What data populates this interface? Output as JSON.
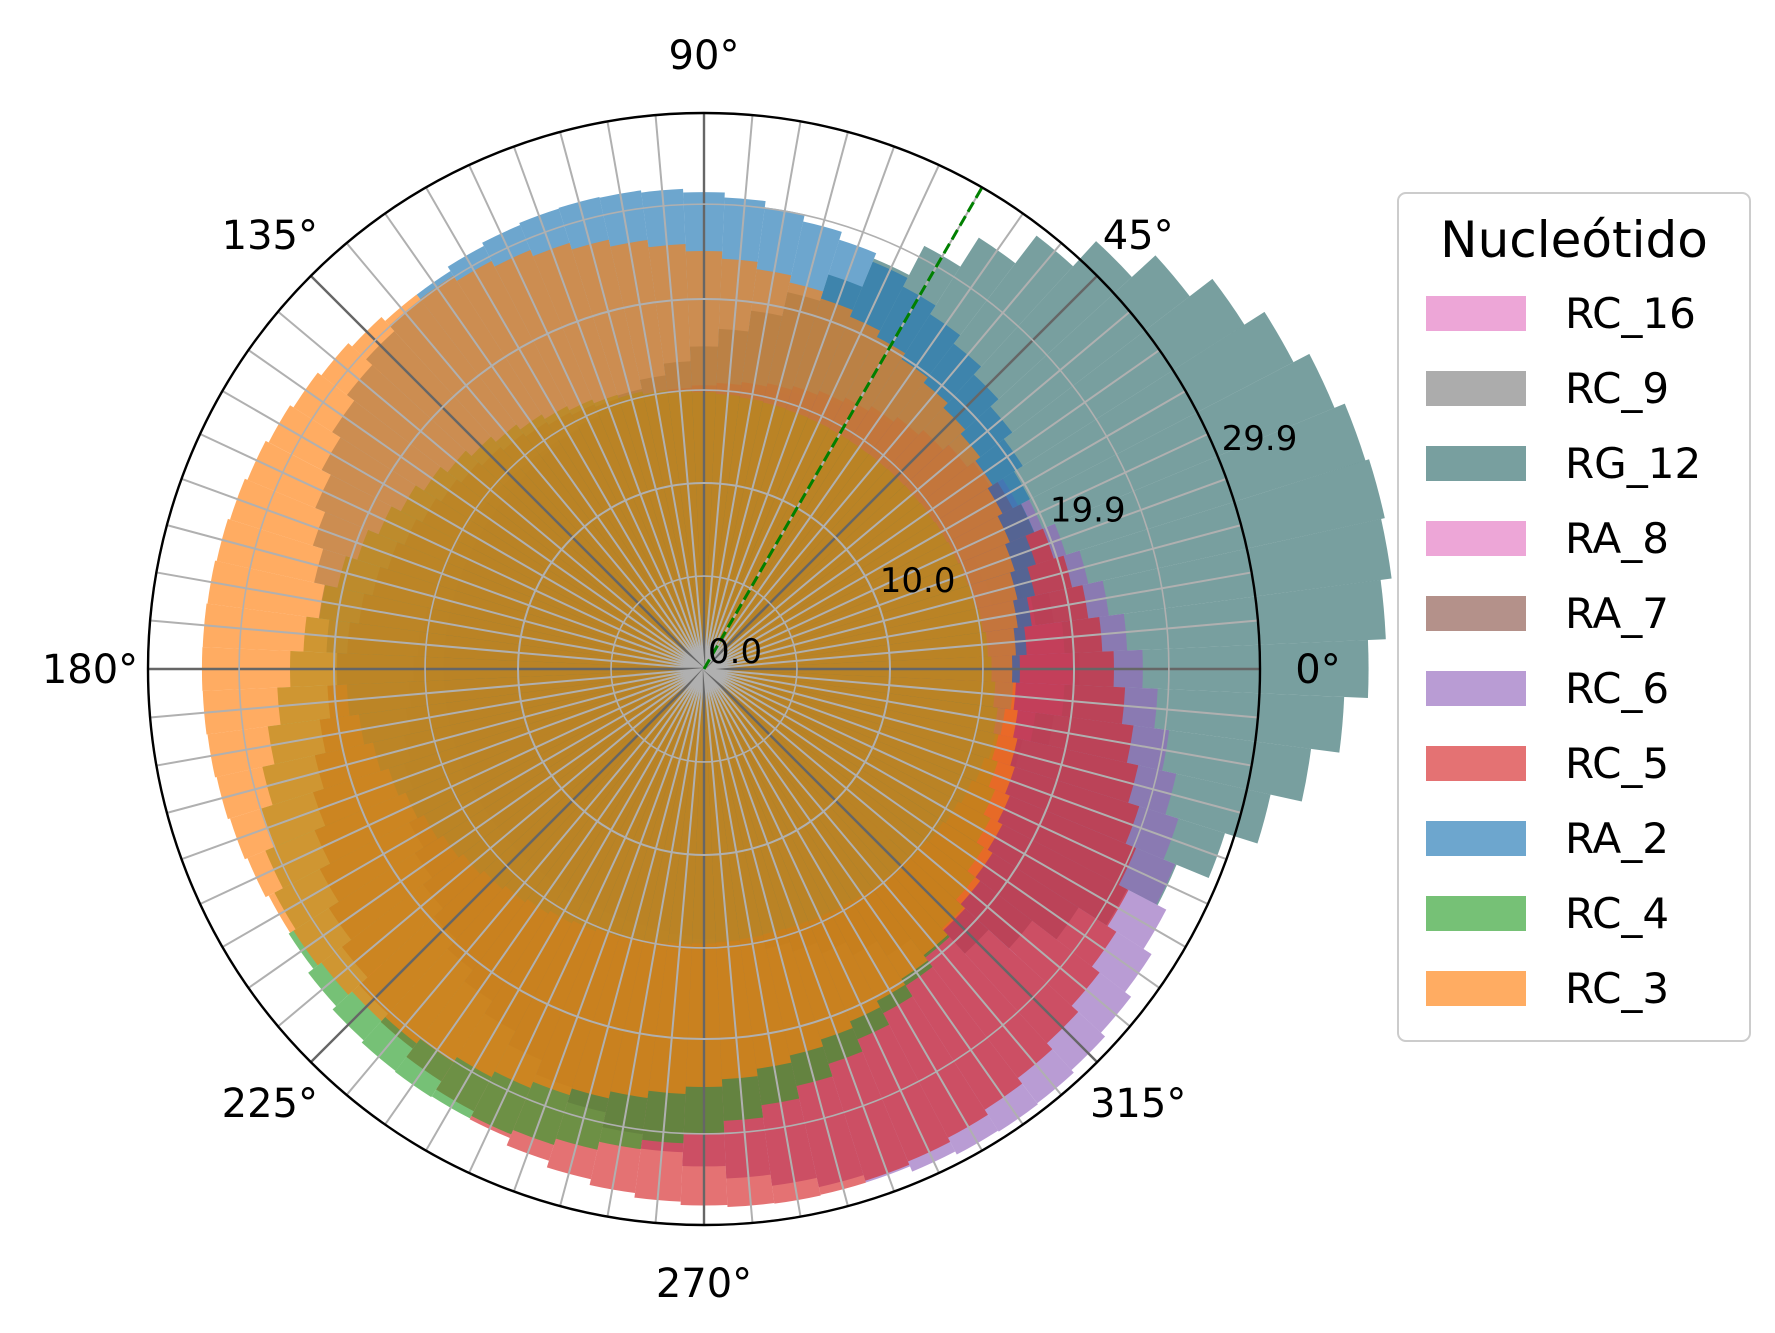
{
  "chart_data": {
    "type": "polar-bar",
    "legend_title": "Nucleótido",
    "legend_position": "right",
    "angle_ticks": [
      "0°",
      "45°",
      "90°",
      "135°",
      "180°",
      "225°",
      "270°",
      "315°"
    ],
    "radial_ticks": [
      "0.0",
      "10.0",
      "19.9",
      "29.9"
    ],
    "radial_tick_values": [
      0.0,
      10.0,
      19.9,
      29.9
    ],
    "rmax": 29.9,
    "bins": 72,
    "grid": true,
    "reference_line": {
      "angle_deg": 60,
      "color": "#008000",
      "style": "dashed"
    },
    "series": [
      {
        "name": "RC_16",
        "color": "#e377c2",
        "center_deg": 0,
        "radius": 0.4,
        "bulge": 19.8,
        "width": 28,
        "floor": 0.2
      },
      {
        "name": "RC_9",
        "color": "#7f7f7f",
        "center_deg": 0,
        "radius": 0.2,
        "bulge": 0.0,
        "width": 1,
        "floor": 0.0
      },
      {
        "name": "RG_12",
        "color": "#2f6b6b",
        "center_deg": 15,
        "radius": 14.0,
        "bulge": 23.5,
        "width": 38,
        "floor": 0.0
      },
      {
        "name": "RA_8",
        "color": "#e377c2",
        "center_deg": 0,
        "radius": 0.4,
        "bulge": 19.5,
        "width": 22,
        "floor": 0.0
      },
      {
        "name": "RA_7",
        "color": "#8c564b",
        "center_deg": 0,
        "radius": 0.2,
        "bulge": 0.0,
        "width": 1,
        "floor": 0.0
      },
      {
        "name": "RC_6",
        "color": "#9467bd",
        "center_deg": 305,
        "radius": 14.5,
        "bulge": 15.0,
        "width": 55,
        "floor": 0.0
      },
      {
        "name": "RC_5",
        "color": "#d62728",
        "center_deg": 280,
        "radius": 14.5,
        "bulge": 14.5,
        "width": 70,
        "floor": 0.0
      },
      {
        "name": "RA_2",
        "color": "#1f77b4",
        "center_deg": 105,
        "radius": 14.5,
        "bulge": 11.5,
        "width": 60,
        "floor": 0.0
      },
      {
        "name": "RC_4",
        "color": "#2ca02c",
        "center_deg": 235,
        "radius": 14.5,
        "bulge": 12.8,
        "width": 55,
        "floor": 0.0
      },
      {
        "name": "RC_3",
        "color": "#ff7f0e",
        "center_deg": 180,
        "radius": 14.5,
        "bulge": 12.5,
        "width": 95,
        "floor": 0.0
      }
    ]
  }
}
